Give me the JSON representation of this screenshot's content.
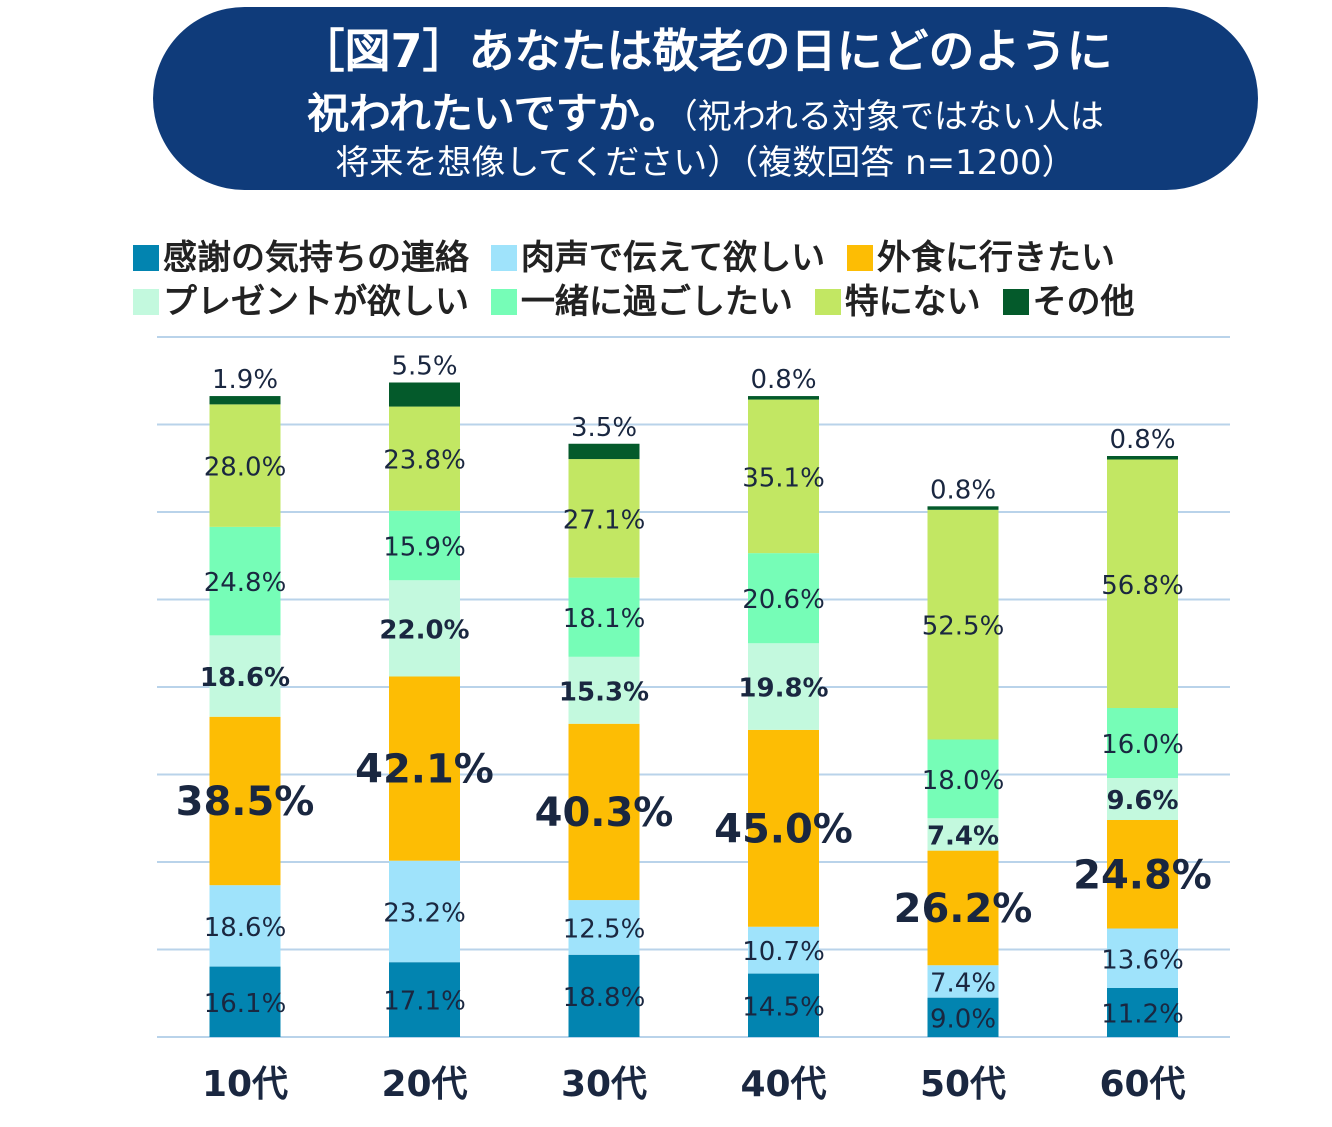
{
  "title": {
    "line1": "［図7］あなたは敬老の日にどのように",
    "line2_bold": "祝われたいですか。",
    "line2_rest": "（祝われる対象ではない人は",
    "line3": "将来を想像してください）（複数回答 n=1200）"
  },
  "chart_data": {
    "type": "bar",
    "stacked": true,
    "categories": [
      "10代",
      "20代",
      "30代",
      "40代",
      "50代",
      "60代"
    ],
    "series": [
      {
        "name": "感謝の気持ちの連絡",
        "color": "#0284b0",
        "values": [
          16.1,
          17.1,
          18.8,
          14.5,
          9.0,
          11.2
        ]
      },
      {
        "name": "肉声で伝えて欲しい",
        "color": "#9fe3fb",
        "values": [
          18.6,
          23.2,
          12.5,
          10.7,
          7.4,
          13.6
        ]
      },
      {
        "name": "外食に行きたい",
        "color": "#fdbd04",
        "values": [
          38.5,
          42.1,
          40.3,
          45.0,
          26.2,
          24.8
        ]
      },
      {
        "name": "プレゼントが欲しい",
        "color": "#c3f9de",
        "values": [
          18.6,
          22.0,
          15.3,
          19.8,
          7.4,
          9.6
        ]
      },
      {
        "name": "一緒に過ごしたい",
        "color": "#76fdb7",
        "values": [
          24.8,
          15.9,
          18.1,
          20.6,
          18.0,
          16.0
        ]
      },
      {
        "name": "特にない",
        "color": "#c2e763",
        "values": [
          28.0,
          23.8,
          27.1,
          35.1,
          52.5,
          56.8
        ]
      },
      {
        "name": "その他",
        "color": "#045a2b",
        "values": [
          1.9,
          5.5,
          3.5,
          0.8,
          0.8,
          0.8
        ]
      }
    ],
    "labels": [
      [
        "16.1%",
        "18.6%",
        "38.5%",
        "18.6%",
        "24.8%",
        "28.0%",
        "1.9%"
      ],
      [
        "17.1%",
        "23.2%",
        "42.1%",
        "22.0%",
        "15.9%",
        "23.8%",
        "5.5%"
      ],
      [
        "18.8%",
        "12.5%",
        "40.3%",
        "15.3%",
        "18.1%",
        "27.1%",
        "3.5%"
      ],
      [
        "14.5%",
        "10.7%",
        "45.0%",
        "19.8%",
        "20.6%",
        "35.1%",
        "0.8%"
      ],
      [
        "9.0%",
        "7.4%",
        "26.2%",
        "7.4%",
        "18.0%",
        "52.5%",
        "0.8%"
      ],
      [
        "11.2%",
        "13.6%",
        "24.8%",
        "9.6%",
        "16.0%",
        "56.8%",
        "0.8%"
      ]
    ],
    "ylim": [
      0,
      160
    ],
    "grid": true,
    "legend": "top"
  }
}
